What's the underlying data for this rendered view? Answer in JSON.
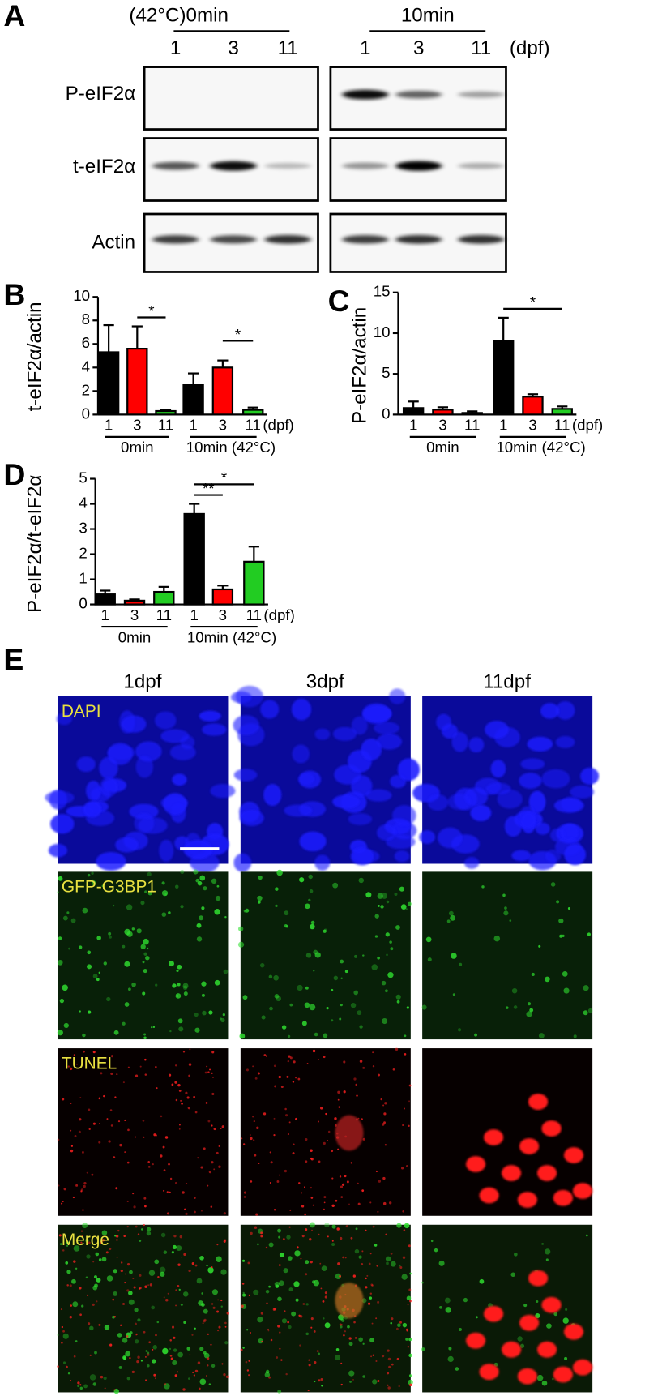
{
  "panel_a": {
    "label": "A",
    "conditions": [
      "(42°C)0min",
      "10min"
    ],
    "lanes": [
      "1",
      "3",
      "11"
    ],
    "unit": "(dpf)",
    "rows": [
      "P-eIF2α",
      "t-eIF2α",
      "Actin"
    ]
  },
  "chart_data": [
    {
      "type": "bar",
      "label": "B",
      "y_label": "t-eIF2α/actin",
      "categories": [
        "1",
        "3",
        "11",
        "1",
        "3",
        "11"
      ],
      "values": [
        5.3,
        5.6,
        0.3,
        2.5,
        4.0,
        0.4
      ],
      "errors": [
        2.3,
        1.9,
        0.1,
        1.0,
        0.6,
        0.2
      ],
      "colors": [
        "#000000",
        "#ff0000",
        "#22cc22",
        "#000000",
        "#ff0000",
        "#22cc22"
      ],
      "unit": "(dpf)",
      "groups": [
        "0min",
        "10min (42°C)"
      ],
      "ylim": [
        0,
        10
      ],
      "yticks": [
        0,
        2,
        4,
        6,
        8,
        10
      ],
      "significance": [
        {
          "label": "*",
          "between": [
            1,
            2
          ]
        },
        {
          "label": "*",
          "between": [
            4,
            5
          ]
        }
      ]
    },
    {
      "type": "bar",
      "label": "C",
      "y_label": "P-eIF2α/actin",
      "categories": [
        "1",
        "3",
        "11",
        "1",
        "3",
        "11"
      ],
      "values": [
        0.8,
        0.6,
        0.2,
        9.0,
        2.2,
        0.7
      ],
      "errors": [
        0.8,
        0.3,
        0.2,
        2.9,
        0.3,
        0.3
      ],
      "colors": [
        "#000000",
        "#ff0000",
        "#22cc22",
        "#000000",
        "#ff0000",
        "#22cc22"
      ],
      "unit": "(dpf)",
      "groups": [
        "0min",
        "10min (42°C)"
      ],
      "ylim": [
        0,
        15
      ],
      "yticks": [
        0,
        5,
        10,
        15
      ],
      "significance": [
        {
          "label": "*",
          "between": [
            3,
            5
          ]
        }
      ]
    },
    {
      "type": "bar",
      "label": "D",
      "y_label": "P-eIF2α/t-eIF2α",
      "categories": [
        "1",
        "3",
        "11",
        "1",
        "3",
        "11"
      ],
      "values": [
        0.4,
        0.15,
        0.5,
        3.6,
        0.6,
        1.7
      ],
      "errors": [
        0.15,
        0.05,
        0.2,
        0.4,
        0.15,
        0.6
      ],
      "colors": [
        "#000000",
        "#ff0000",
        "#22cc22",
        "#000000",
        "#ff0000",
        "#22cc22"
      ],
      "unit": "(dpf)",
      "groups": [
        "0min",
        "10min (42°C)"
      ],
      "ylim": [
        0,
        5
      ],
      "yticks": [
        0,
        1,
        2,
        3,
        4,
        5
      ],
      "significance": [
        {
          "label": "**",
          "between": [
            3,
            4
          ]
        },
        {
          "label": "*",
          "between": [
            3,
            5
          ]
        }
      ]
    }
  ],
  "panel_e": {
    "label": "E",
    "columns": [
      "1dpf",
      "3dpf",
      "11dpf"
    ],
    "rows": [
      "DAPI",
      "GFP-G3BP1",
      "TUNEL",
      "Merge"
    ]
  }
}
